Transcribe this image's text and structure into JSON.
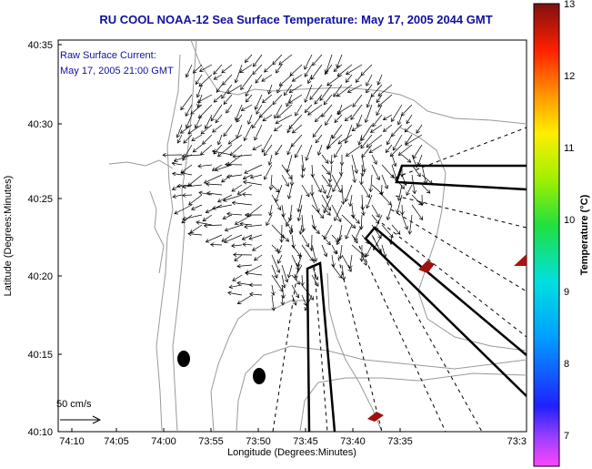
{
  "title": "RU COOL  NOAA-12  Sea Surface Temperature:  May 17, 2005 2044 GMT",
  "annotation": {
    "line1": "Raw Surface Current:",
    "line2": "May 17, 2005 21:00 GMT"
  },
  "axes": {
    "xlabel": "Longitude (Degrees:Minutes)",
    "ylabel": "Latitude (Degrees:Minutes)",
    "x_ticks": [
      "74:10",
      "74:05",
      "74:00",
      "73:55",
      "73:50",
      "73:45",
      "73:40",
      "73:35",
      "73:3"
    ],
    "y_ticks": [
      "40:35",
      "40:30",
      "40:25",
      "40:20",
      "40:15",
      "40:10"
    ]
  },
  "scale": {
    "label": "50 cm/s"
  },
  "colorbar": {
    "label": "Temperature (°C)",
    "ticks": [
      "13",
      "12",
      "11",
      "10",
      "9",
      "8",
      "7"
    ]
  },
  "colors": {
    "title": "#1010a0",
    "land_contour": "#999999",
    "arrows": "#000000"
  }
}
